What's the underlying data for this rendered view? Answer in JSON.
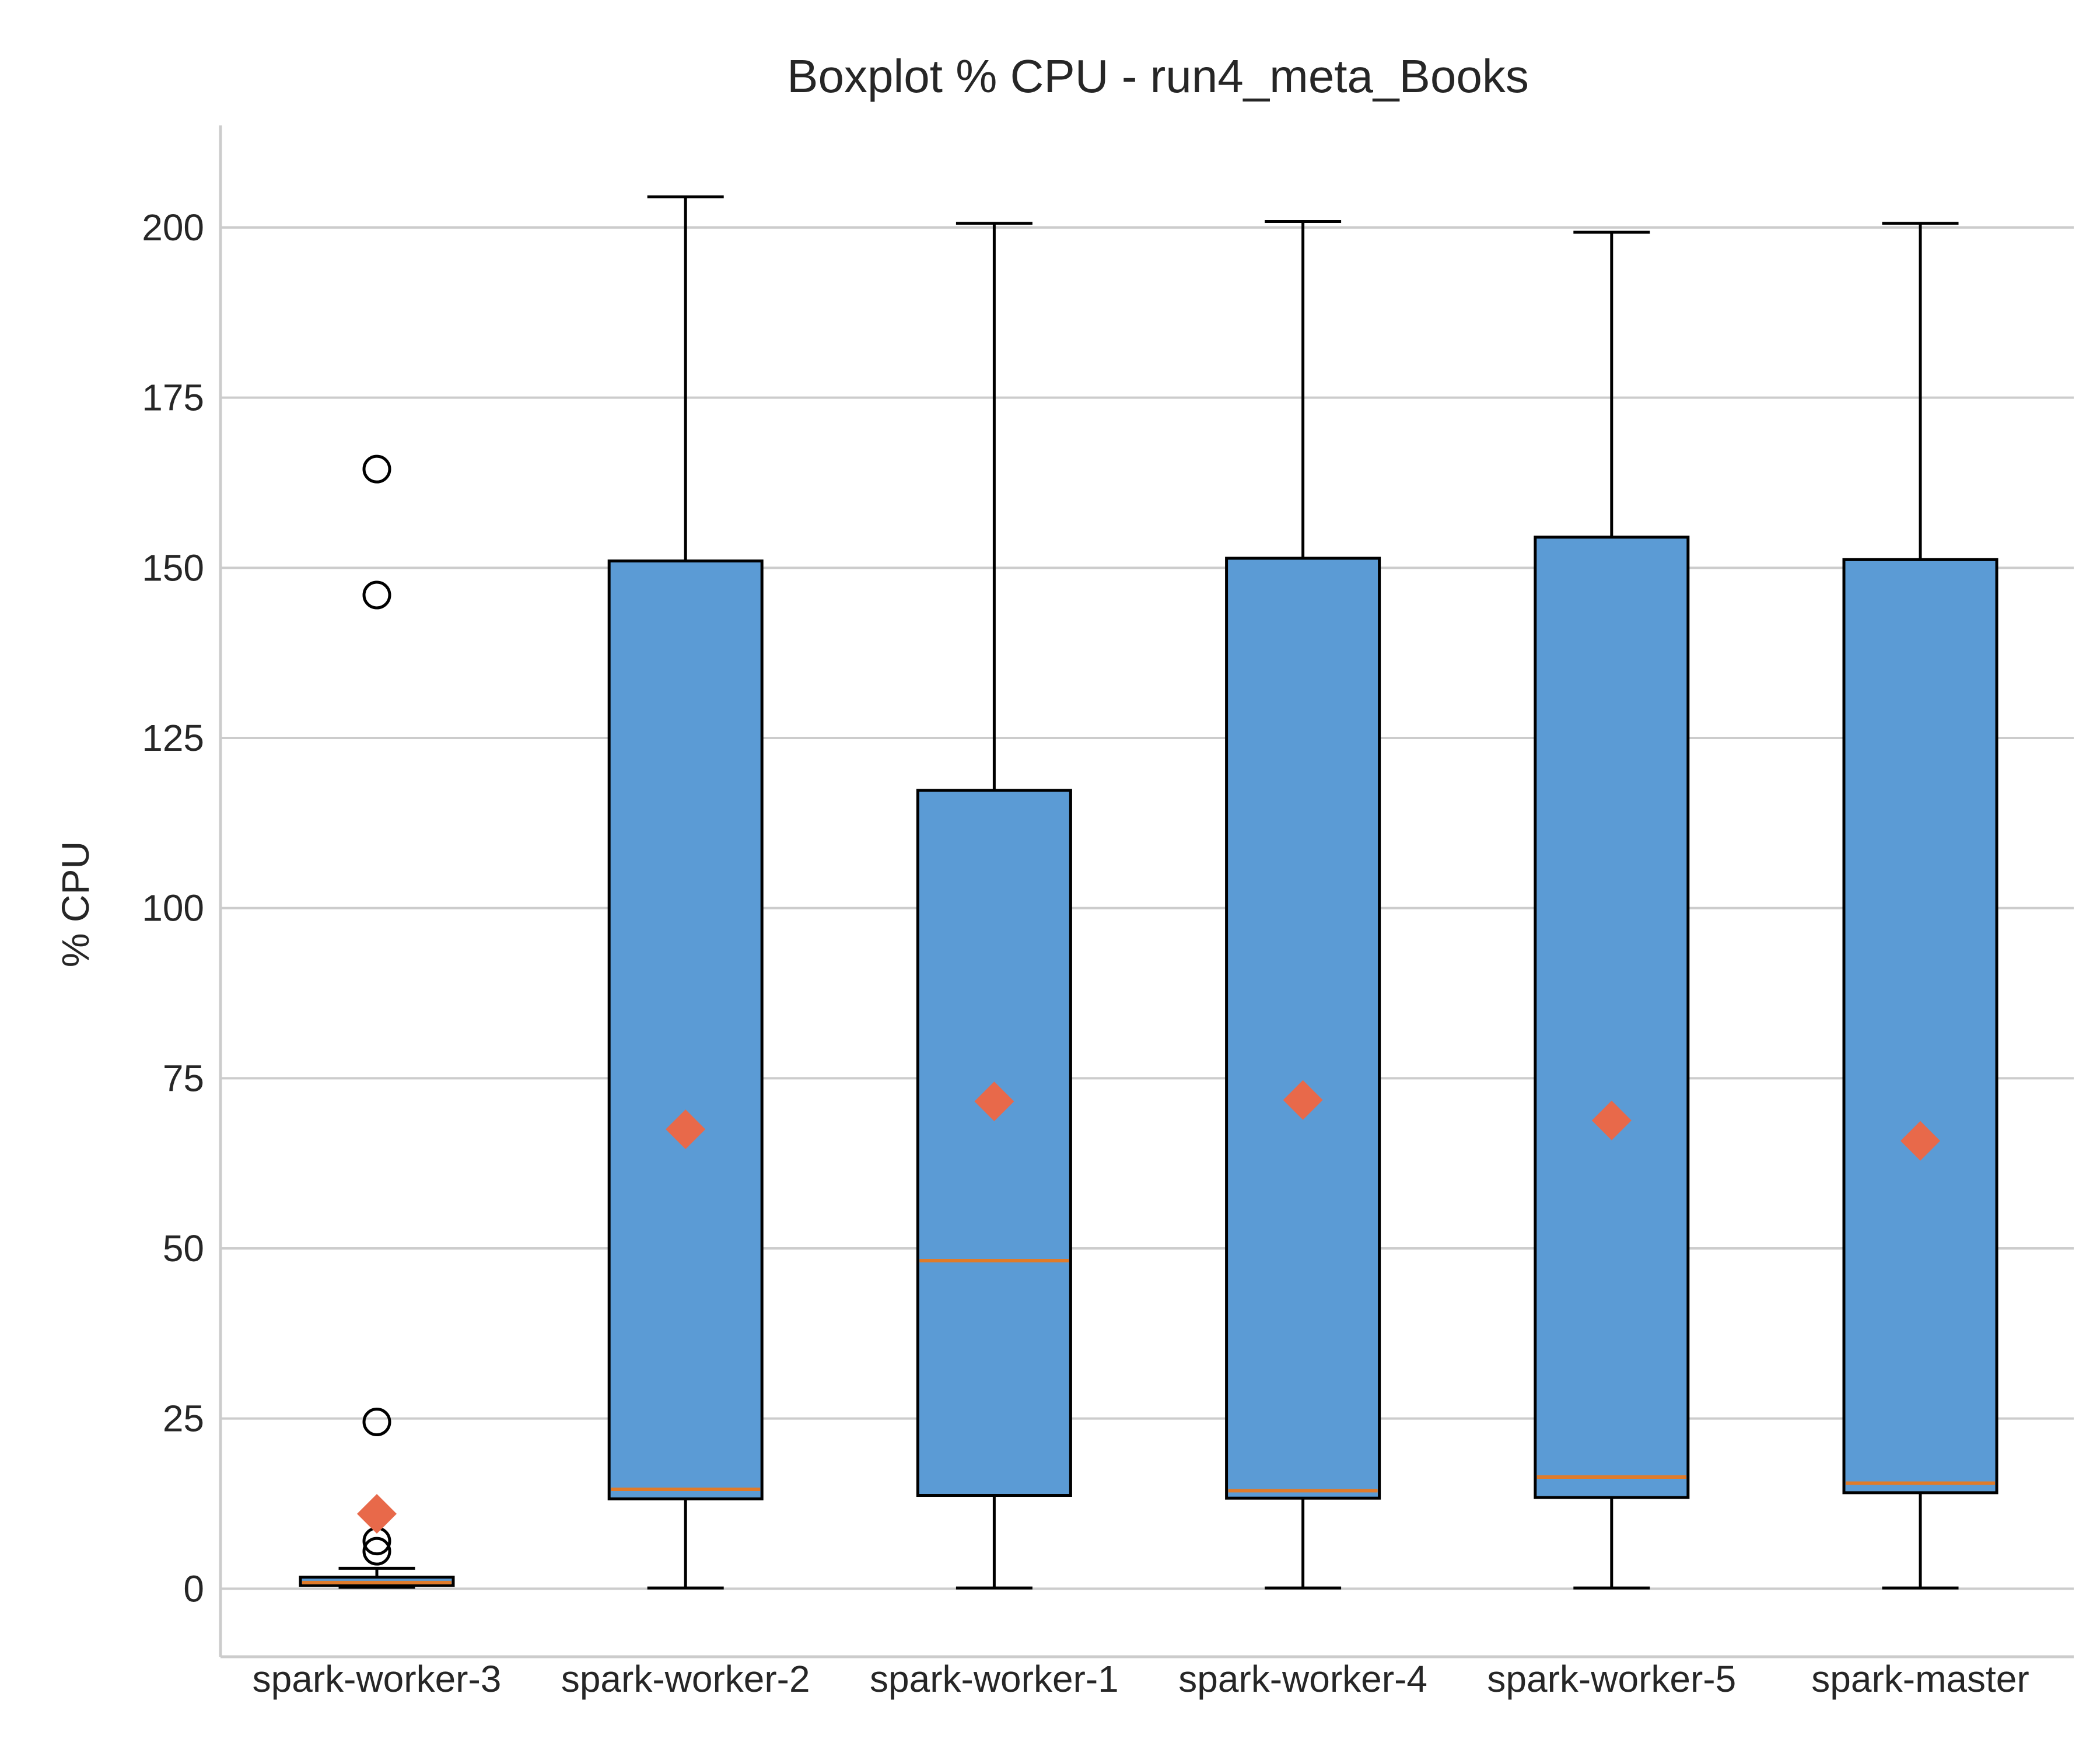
{
  "chart_data": {
    "type": "box",
    "title": "Boxplot % CPU - run4_meta_Books",
    "xlabel": "",
    "ylabel": "% CPU",
    "ylim": [
      -10,
      215
    ],
    "yticks": [
      0,
      25,
      50,
      75,
      100,
      125,
      150,
      175,
      200
    ],
    "grid": "horizontal",
    "colors": {
      "box_fill": "#5b9bd5",
      "median": "#e07b2a",
      "mean_marker": "#e8694a",
      "grid": "#cccccc",
      "axis": "#cccccc"
    },
    "categories": [
      "spark-worker-3",
      "spark-worker-2",
      "spark-worker-1",
      "spark-worker-4",
      "spark-worker-5",
      "spark-master"
    ],
    "boxes": [
      {
        "whisker_low": 0.2,
        "q1": 0.5,
        "median": 0.9,
        "q3": 1.7,
        "whisker_high": 3.0,
        "mean": 11.0,
        "outliers": [
          5.5,
          7.0,
          24.5,
          146.0,
          164.5
        ]
      },
      {
        "whisker_low": 0.1,
        "q1": 13.2,
        "median": 14.6,
        "q3": 151.0,
        "whisker_high": 204.5,
        "mean": 67.5,
        "outliers": []
      },
      {
        "whisker_low": 0.1,
        "q1": 13.7,
        "median": 48.2,
        "q3": 117.3,
        "whisker_high": 200.6,
        "mean": 71.6,
        "outliers": []
      },
      {
        "whisker_low": 0.1,
        "q1": 13.3,
        "median": 14.4,
        "q3": 151.4,
        "whisker_high": 200.9,
        "mean": 71.8,
        "outliers": []
      },
      {
        "whisker_low": 0.1,
        "q1": 13.4,
        "median": 16.4,
        "q3": 154.5,
        "whisker_high": 199.3,
        "mean": 68.8,
        "outliers": []
      },
      {
        "whisker_low": 0.1,
        "q1": 14.1,
        "median": 15.5,
        "q3": 151.2,
        "whisker_high": 200.6,
        "mean": 65.8,
        "outliers": []
      }
    ]
  }
}
